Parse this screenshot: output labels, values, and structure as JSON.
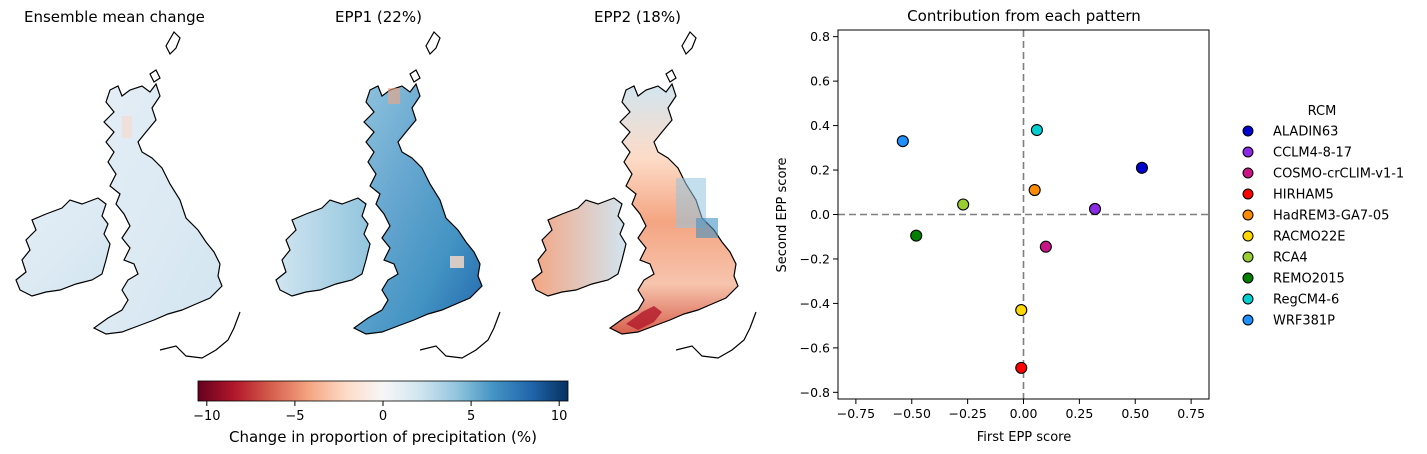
{
  "maps": {
    "titles": [
      "Ensemble mean change",
      "EPP1 (22%)",
      "EPP2 (18%)"
    ],
    "colorbar": {
      "label": "Change in proportion of precipitation (%)",
      "ticks": [
        -10,
        -5,
        0,
        5,
        10
      ],
      "tick_labels": [
        "−10",
        "−5",
        "0",
        "5",
        "10"
      ],
      "range": [
        -10.5,
        10.5
      ],
      "colormap": "RdBu",
      "colors": [
        "#67001f",
        "#b2182b",
        "#d6604d",
        "#f4a582",
        "#fddbc7",
        "#f7f7f7",
        "#d1e5f0",
        "#92c5de",
        "#4393c3",
        "#2166ac",
        "#053061"
      ]
    }
  },
  "chart_data": {
    "type": "scatter",
    "title": "Contribution from each pattern",
    "xlabel": "First EPP score",
    "ylabel": "Second EPP score",
    "xlim": [
      -0.83,
      0.83
    ],
    "ylim": [
      -0.83,
      0.83
    ],
    "xticks": [
      -0.75,
      -0.5,
      -0.25,
      0.0,
      0.25,
      0.5,
      0.75
    ],
    "xtick_labels": [
      "−0.75",
      "−0.50",
      "−0.25",
      "0.00",
      "0.25",
      "0.50",
      "0.75"
    ],
    "yticks": [
      -0.8,
      -0.6,
      -0.4,
      -0.2,
      0.0,
      0.2,
      0.4,
      0.6,
      0.8
    ],
    "ytick_labels": [
      "−0.8",
      "−0.6",
      "−0.4",
      "−0.2",
      "0.0",
      "0.2",
      "0.4",
      "0.6",
      "0.8"
    ],
    "reference_lines": {
      "x": 0,
      "y": 0,
      "style": "dashed",
      "color": "#7f7f7f"
    },
    "legend": {
      "title": "RCM",
      "placement": "outside-right"
    },
    "series": [
      {
        "name": "ALADIN63",
        "x": 0.53,
        "y": 0.21,
        "color": "#0000cd"
      },
      {
        "name": "CCLM4-8-17",
        "x": 0.32,
        "y": 0.025,
        "color": "#8a2be2"
      },
      {
        "name": "COSMO-crCLIM-v1-1",
        "x": 0.1,
        "y": -0.145,
        "color": "#c71585"
      },
      {
        "name": "HIRHAM5",
        "x": -0.01,
        "y": -0.69,
        "color": "#ff0000"
      },
      {
        "name": "HadREM3-GA7-05",
        "x": 0.05,
        "y": 0.11,
        "color": "#ff8c00"
      },
      {
        "name": "RACMO22E",
        "x": -0.01,
        "y": -0.43,
        "color": "#ffd700"
      },
      {
        "name": "RCA4",
        "x": -0.27,
        "y": 0.045,
        "color": "#9acd32"
      },
      {
        "name": "REMO2015",
        "x": -0.48,
        "y": -0.095,
        "color": "#008000"
      },
      {
        "name": "RegCM4-6",
        "x": 0.06,
        "y": 0.38,
        "color": "#00ced1"
      },
      {
        "name": "WRF381P",
        "x": -0.54,
        "y": 0.33,
        "color": "#1e90ff"
      }
    ]
  }
}
